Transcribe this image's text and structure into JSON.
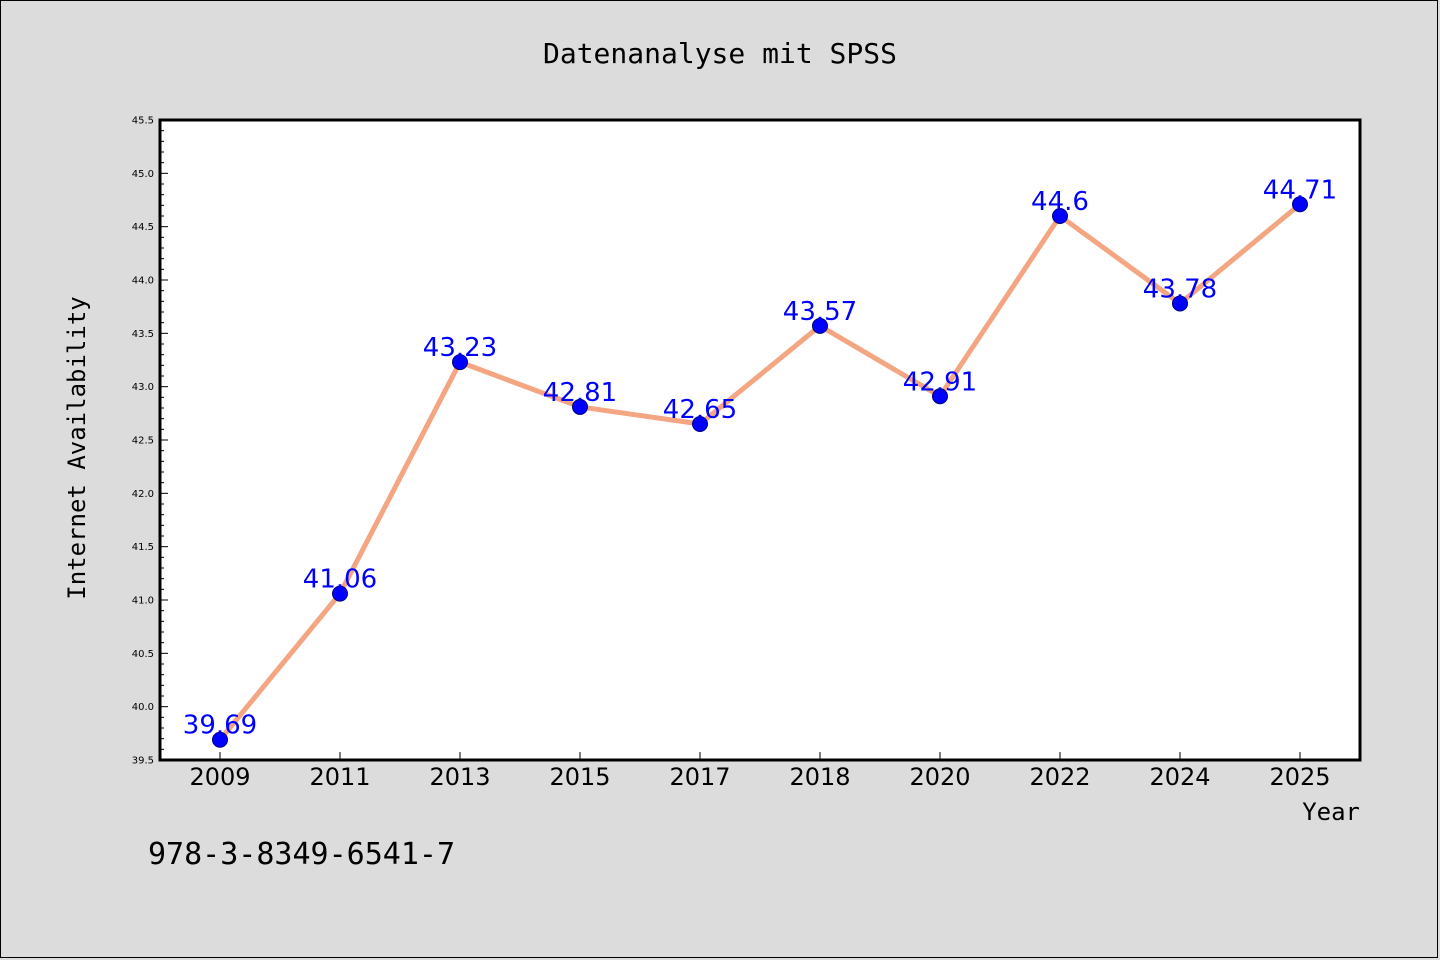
{
  "chart_data": {
    "type": "line",
    "title": "Datenanalyse mit SPSS",
    "xlabel": "Year",
    "ylabel": "Internet Availability",
    "categories": [
      "2009",
      "2011",
      "2013",
      "2015",
      "2017",
      "2018",
      "2020",
      "2022",
      "2024",
      "2025"
    ],
    "series": [
      {
        "values": [
          39.69,
          41.06,
          43.23,
          42.81,
          42.65,
          43.57,
          42.91,
          44.6,
          43.78,
          44.71
        ]
      }
    ],
    "data_labels": [
      "39.69",
      "41.06",
      "43.23",
      "42.81",
      "42.65",
      "43.57",
      "42.91",
      "44.6",
      "43.78",
      "44.71"
    ],
    "ylim": [
      39.5,
      45.5
    ],
    "yticks": [
      39.5,
      40.0,
      40.5,
      41.0,
      41.5,
      42.0,
      42.5,
      43.0,
      43.5,
      44.0,
      44.5,
      45.0,
      45.5
    ],
    "ytick_labels": [
      "39.5",
      "40.0",
      "40.5",
      "41.0",
      "41.5",
      "42.0",
      "42.5",
      "43.0",
      "43.5",
      "44.0",
      "44.5",
      "45.0",
      "45.5"
    ],
    "grid": false,
    "legend": "none",
    "colors": {
      "line": "#f4a582",
      "marker": "#0000ff",
      "marker_edge": "#000080",
      "label": "#0000ff",
      "background": "#dcdcdc",
      "plot_background": "#ffffff"
    }
  },
  "footer": {
    "text": "978-3-8349-6541-7"
  }
}
